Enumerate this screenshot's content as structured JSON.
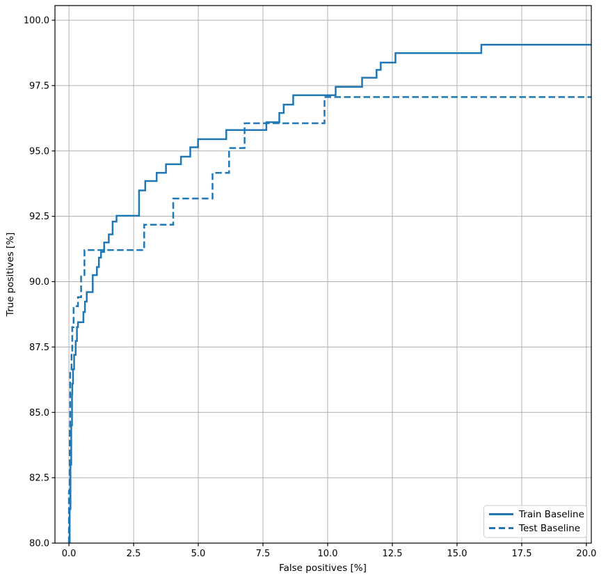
{
  "figure": {
    "background": "#ffffff"
  },
  "chart_data": {
    "type": "line",
    "subtype": "roc-step-curves",
    "title": "",
    "xlabel": "False positives [%]",
    "ylabel": "True positives [%]",
    "xlim": [
      -0.54,
      20.19
    ],
    "ylim": [
      80.0,
      100.56
    ],
    "grid": true,
    "grid_color": "#b0b0b0",
    "spine_color": "#000000",
    "accent_color": "#1f77b4",
    "x_ticks": [
      0.0,
      2.5,
      5.0,
      7.5,
      10.0,
      12.5,
      15.0,
      17.5,
      20.0
    ],
    "x_tick_labels": [
      "0.0",
      "2.5",
      "5.0",
      "7.5",
      "10.0",
      "12.5",
      "15.0",
      "17.5",
      "20.0"
    ],
    "y_ticks": [
      80.0,
      82.5,
      85.0,
      87.5,
      90.0,
      92.5,
      95.0,
      97.5,
      100.0
    ],
    "y_tick_labels": [
      "80.0",
      "82.5",
      "85.0",
      "87.5",
      "90.0",
      "92.5",
      "95.0",
      "97.5",
      "100.0"
    ],
    "legend": {
      "position": "lower right",
      "border_color": "#cccccc",
      "background": "#ffffff"
    },
    "series": [
      {
        "name": "Train Baseline",
        "style": "solid",
        "color": "#1f77b4",
        "points": [
          [
            0.03,
            80.0
          ],
          [
            0.03,
            81.3
          ],
          [
            0.06,
            81.3
          ],
          [
            0.06,
            83.0
          ],
          [
            0.09,
            83.0
          ],
          [
            0.09,
            84.5
          ],
          [
            0.12,
            84.5
          ],
          [
            0.12,
            85.7
          ],
          [
            0.13,
            85.7
          ],
          [
            0.13,
            86.1
          ],
          [
            0.16,
            86.1
          ],
          [
            0.16,
            86.65
          ],
          [
            0.2,
            86.65
          ],
          [
            0.2,
            87.2
          ],
          [
            0.26,
            87.2
          ],
          [
            0.26,
            87.73
          ],
          [
            0.31,
            87.73
          ],
          [
            0.31,
            88.26
          ],
          [
            0.35,
            88.26
          ],
          [
            0.35,
            88.45
          ],
          [
            0.56,
            88.45
          ],
          [
            0.56,
            88.84
          ],
          [
            0.62,
            88.84
          ],
          [
            0.62,
            89.24
          ],
          [
            0.69,
            89.24
          ],
          [
            0.69,
            89.6
          ],
          [
            0.92,
            89.6
          ],
          [
            0.92,
            90.25
          ],
          [
            1.08,
            90.25
          ],
          [
            1.08,
            90.56
          ],
          [
            1.16,
            90.56
          ],
          [
            1.16,
            90.92
          ],
          [
            1.24,
            90.92
          ],
          [
            1.24,
            91.14
          ],
          [
            1.36,
            91.14
          ],
          [
            1.36,
            91.5
          ],
          [
            1.54,
            91.5
          ],
          [
            1.54,
            91.81
          ],
          [
            1.69,
            91.81
          ],
          [
            1.69,
            92.3
          ],
          [
            1.84,
            92.3
          ],
          [
            1.84,
            92.52
          ],
          [
            2.71,
            92.52
          ],
          [
            2.71,
            93.49
          ],
          [
            2.95,
            93.49
          ],
          [
            2.95,
            93.85
          ],
          [
            3.39,
            93.85
          ],
          [
            3.39,
            94.16
          ],
          [
            3.75,
            94.16
          ],
          [
            3.75,
            94.49
          ],
          [
            4.33,
            94.49
          ],
          [
            4.33,
            94.78
          ],
          [
            4.69,
            94.78
          ],
          [
            4.69,
            95.14
          ],
          [
            4.99,
            95.14
          ],
          [
            4.99,
            95.45
          ],
          [
            6.08,
            95.45
          ],
          [
            6.08,
            95.8
          ],
          [
            7.63,
            95.8
          ],
          [
            7.63,
            96.1
          ],
          [
            8.13,
            96.1
          ],
          [
            8.13,
            96.45
          ],
          [
            8.3,
            96.45
          ],
          [
            8.3,
            96.77
          ],
          [
            8.67,
            96.77
          ],
          [
            8.67,
            97.13
          ],
          [
            10.31,
            97.13
          ],
          [
            10.31,
            97.45
          ],
          [
            11.33,
            97.45
          ],
          [
            11.33,
            97.8
          ],
          [
            11.89,
            97.8
          ],
          [
            11.89,
            98.1
          ],
          [
            12.05,
            98.1
          ],
          [
            12.05,
            98.38
          ],
          [
            12.62,
            98.38
          ],
          [
            12.62,
            98.74
          ],
          [
            15.94,
            98.74
          ],
          [
            15.94,
            99.06
          ],
          [
            20.19,
            99.06
          ]
        ]
      },
      {
        "name": "Test Baseline",
        "style": "dashed",
        "color": "#1f77b4",
        "points": [
          [
            0.0,
            80.0
          ],
          [
            0.0,
            82.0
          ],
          [
            0.03,
            82.0
          ],
          [
            0.03,
            84.3
          ],
          [
            0.05,
            84.3
          ],
          [
            0.05,
            86.56
          ],
          [
            0.1,
            86.56
          ],
          [
            0.1,
            87.32
          ],
          [
            0.13,
            87.32
          ],
          [
            0.13,
            88.26
          ],
          [
            0.18,
            88.26
          ],
          [
            0.18,
            89.06
          ],
          [
            0.35,
            89.06
          ],
          [
            0.35,
            89.41
          ],
          [
            0.47,
            89.41
          ],
          [
            0.47,
            90.2
          ],
          [
            0.6,
            90.2
          ],
          [
            0.6,
            91.21
          ],
          [
            2.91,
            91.21
          ],
          [
            2.91,
            92.18
          ],
          [
            4.03,
            92.18
          ],
          [
            4.03,
            93.18
          ],
          [
            5.55,
            93.18
          ],
          [
            5.55,
            94.16
          ],
          [
            6.19,
            94.16
          ],
          [
            6.19,
            95.11
          ],
          [
            6.79,
            95.11
          ],
          [
            6.79,
            96.06
          ],
          [
            9.88,
            96.06
          ],
          [
            9.88,
            97.06
          ],
          [
            20.19,
            97.06
          ]
        ]
      }
    ]
  }
}
